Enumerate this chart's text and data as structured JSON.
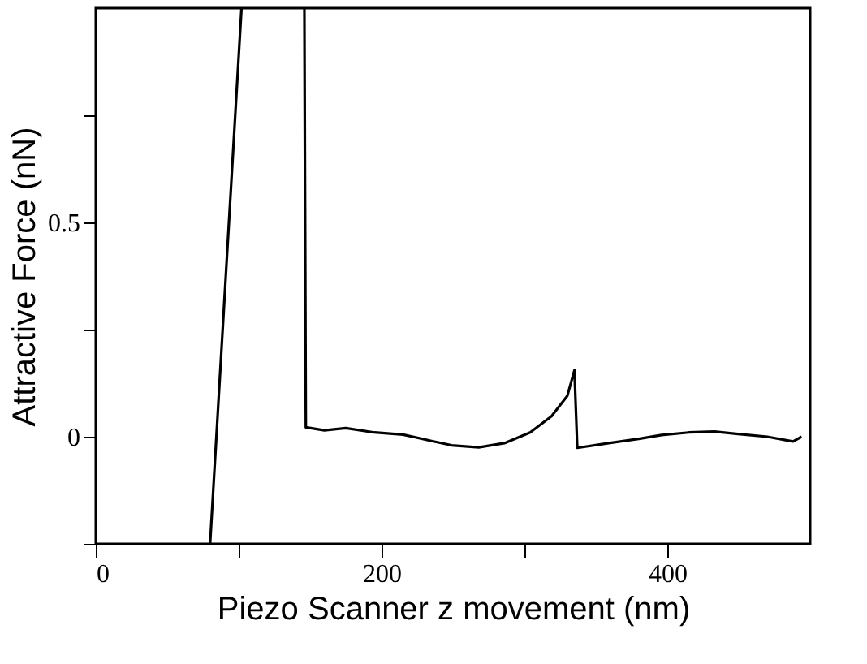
{
  "chart_data": {
    "type": "line",
    "xlabel": "Piezo Scanner z movement (nm)",
    "ylabel": "Attractive Force (nN)",
    "xlim": [
      0,
      500
    ],
    "ylim": [
      -0.25,
      1.0
    ],
    "xticks": [
      0,
      {
        "value": 100,
        "label": null
      },
      200,
      {
        "value": 300,
        "label": null
      },
      400
    ],
    "yticks": [
      {
        "value": -0.25,
        "label": null
      },
      0,
      {
        "value": 0.25,
        "label": null
      },
      0.5,
      {
        "value": 0.75,
        "label": null
      }
    ],
    "grid": false,
    "marker": "none",
    "line_style": "solid",
    "series": [
      {
        "color": "#000000",
        "x": [
          80,
          102,
          124,
          146,
          147,
          160,
          175,
          195,
          215,
          235,
          249,
          268,
          286,
          304,
          319,
          330,
          335,
          337,
          359,
          380,
          396,
          415,
          433,
          451,
          470,
          488,
          494
        ],
        "values": [
          -0.25,
          1.0,
          null,
          1.0,
          0.022,
          0.015,
          0.02,
          0.01,
          0.005,
          -0.01,
          -0.02,
          -0.025,
          -0.015,
          0.01,
          0.048,
          0.095,
          0.155,
          -0.026,
          -0.015,
          -0.005,
          0.004,
          0.01,
          0.012,
          0.006,
          0.0,
          -0.011,
          0.0
        ]
      }
    ]
  }
}
